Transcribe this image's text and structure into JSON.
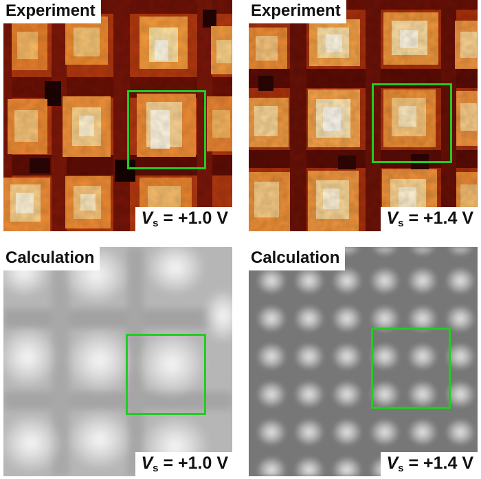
{
  "panels": {
    "top_left": {
      "label": "Experiment",
      "bias_symbol": "V",
      "bias_subscript": "s",
      "bias_value": "= +1.0 V"
    },
    "top_right": {
      "label": "Experiment",
      "bias_symbol": "V",
      "bias_subscript": "s",
      "bias_value": "= +1.4 V"
    },
    "bottom_left": {
      "label": "Calculation",
      "bias_symbol": "V",
      "bias_subscript": "s",
      "bias_value": "= +1.0 V"
    },
    "bottom_right": {
      "label": "Calculation",
      "bias_symbol": "V",
      "bias_subscript": "s",
      "bias_value": "= +1.4 V"
    }
  },
  "colors": {
    "highlight_box": "#22cc22",
    "experiment_colormap": [
      "#1a0000",
      "#6b0d05",
      "#b8380c",
      "#e8761c",
      "#f7b860",
      "#fff2cc"
    ],
    "calculation_colormap": [
      "#6f6f6f",
      "#9a9a9a",
      "#c8c8c8",
      "#f2f2f2"
    ]
  }
}
